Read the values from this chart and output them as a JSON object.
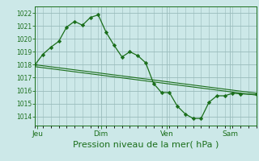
{
  "bg_color": "#cce8e8",
  "grid_color": "#99bbbb",
  "line_color": "#1a6e1a",
  "marker_color": "#1a6e1a",
  "ylabel_ticks": [
    1014,
    1015,
    1016,
    1017,
    1018,
    1019,
    1020,
    1021,
    1022
  ],
  "ylim": [
    1013.3,
    1022.5
  ],
  "xlabel": "Pression niveau de la mer( hPa )",
  "xlabel_fontsize": 8,
  "day_labels": [
    "Jeu",
    "Dim",
    "Ven",
    "Sam"
  ],
  "day_positions": [
    2,
    50,
    100,
    148
  ],
  "total_hours": 168,
  "series": [
    {
      "x": [
        0,
        6,
        12,
        18,
        24,
        30,
        36,
        42,
        48,
        54,
        60,
        66,
        72,
        78,
        84,
        90,
        96,
        102,
        108,
        114,
        120,
        126,
        132,
        138,
        144,
        150,
        156,
        168
      ],
      "y": [
        1018.0,
        1018.8,
        1019.35,
        1019.8,
        1020.9,
        1021.35,
        1021.05,
        1021.65,
        1021.85,
        1020.5,
        1019.5,
        1018.6,
        1019.0,
        1018.7,
        1018.15,
        1016.55,
        1015.85,
        1015.85,
        1014.8,
        1014.2,
        1013.85,
        1013.85,
        1015.1,
        1015.6,
        1015.6,
        1015.8,
        1015.75,
        1015.7
      ]
    },
    {
      "x": [
        0,
        168
      ],
      "y": [
        1018.0,
        1015.8
      ]
    },
    {
      "x": [
        0,
        168
      ],
      "y": [
        1017.85,
        1015.65
      ]
    }
  ]
}
